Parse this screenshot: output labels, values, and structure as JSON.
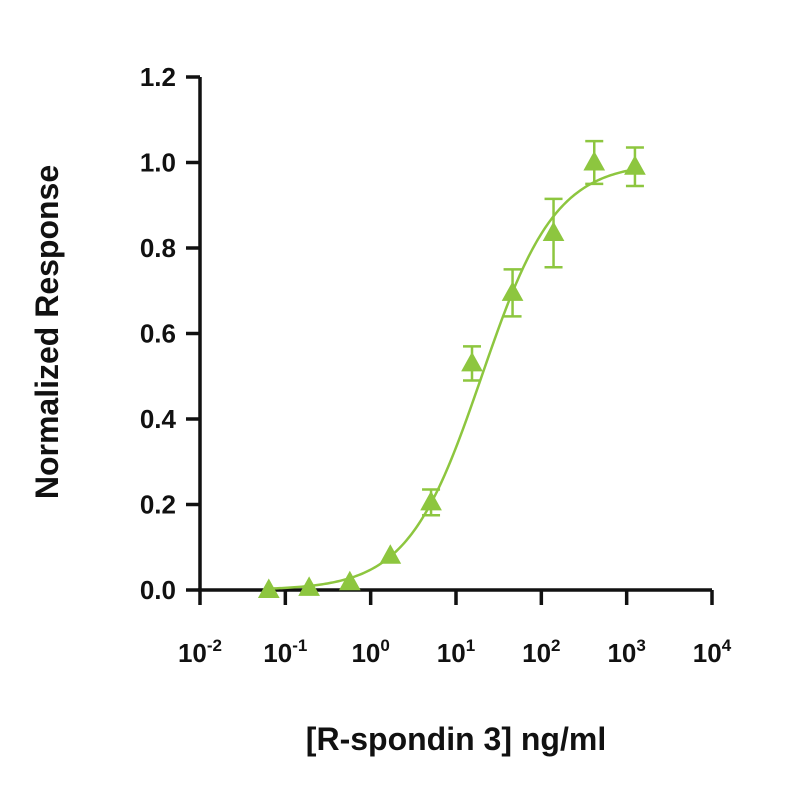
{
  "chart_data": {
    "type": "scatter",
    "title": "",
    "xlabel": "[R-spondin 3] ng/ml",
    "ylabel": "Normalized Response",
    "xscale": "log10",
    "xlim": [
      0.01,
      10000
    ],
    "ylim": [
      0.0,
      1.2
    ],
    "x_ticks": [
      {
        "base": "10",
        "exp": "-2"
      },
      {
        "base": "10",
        "exp": "-1"
      },
      {
        "base": "10",
        "exp": "0"
      },
      {
        "base": "10",
        "exp": "1"
      },
      {
        "base": "10",
        "exp": "2"
      },
      {
        "base": "10",
        "exp": "3"
      },
      {
        "base": "10",
        "exp": "4"
      }
    ],
    "y_ticks": [
      "0.0",
      "0.2",
      "0.4",
      "0.6",
      "0.8",
      "1.0",
      "1.2"
    ],
    "grid": false,
    "color": "#8dc63f",
    "marker": "triangle",
    "series": [
      {
        "name": "R-spondin 3",
        "x": [
          0.064,
          0.19,
          0.57,
          1.7,
          5.1,
          15.4,
          46,
          139,
          417,
          1250
        ],
        "y": [
          0.0,
          0.005,
          0.018,
          0.08,
          0.205,
          0.53,
          0.695,
          0.835,
          1.0,
          0.99
        ],
        "err": [
          0,
          0,
          0,
          0,
          0.03,
          0.04,
          0.055,
          0.08,
          0.05,
          0.045
        ]
      }
    ],
    "fit": {
      "type": "4PL",
      "bottom": 0.0,
      "top": 1.0,
      "ec50": 20,
      "hill": 1.0
    }
  }
}
